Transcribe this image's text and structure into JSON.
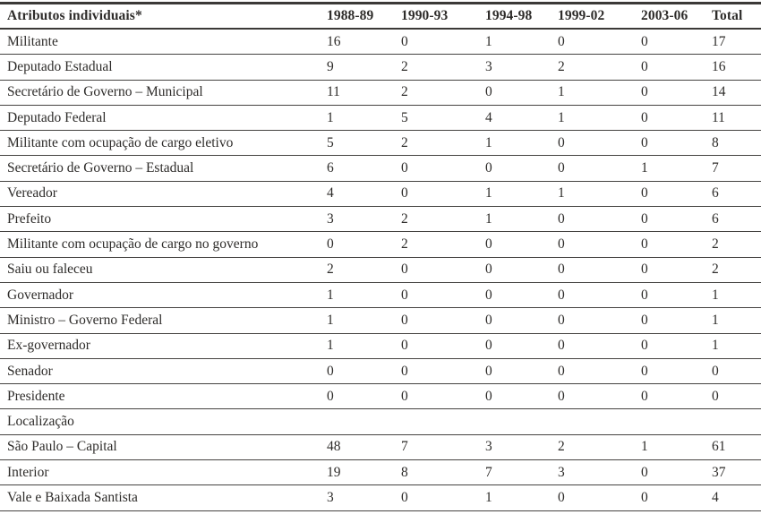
{
  "table": {
    "header_label": "Atributos individuais*",
    "columns": [
      "1988-89",
      "1990-93",
      "1994-98",
      "1999-02",
      "2003-06",
      "Total"
    ],
    "rows": [
      {
        "label": "Militante",
        "values": [
          "16",
          "0",
          "1",
          "0",
          "0",
          "17"
        ]
      },
      {
        "label": "Deputado Estadual",
        "values": [
          "9",
          "2",
          "3",
          "2",
          "0",
          "16"
        ]
      },
      {
        "label": "Secretário de Governo – Municipal",
        "values": [
          "11",
          "2",
          "0",
          "1",
          "0",
          "14"
        ]
      },
      {
        "label": "Deputado Federal",
        "values": [
          "1",
          "5",
          "4",
          "1",
          "0",
          "11"
        ]
      },
      {
        "label": "Militante com ocupação de cargo eletivo",
        "values": [
          "5",
          "2",
          "1",
          "0",
          "0",
          "8"
        ]
      },
      {
        "label": "Secretário de Governo – Estadual",
        "values": [
          "6",
          "0",
          "0",
          "0",
          "1",
          "7"
        ]
      },
      {
        "label": "Vereador",
        "values": [
          "4",
          "0",
          "1",
          "1",
          "0",
          "6"
        ]
      },
      {
        "label": "Prefeito",
        "values": [
          "3",
          "2",
          "1",
          "0",
          "0",
          "6"
        ]
      },
      {
        "label": "Militante com ocupação de cargo no governo",
        "values": [
          "0",
          "2",
          "0",
          "0",
          "0",
          "2"
        ]
      },
      {
        "label": "Saiu ou faleceu",
        "values": [
          "2",
          "0",
          "0",
          "0",
          "0",
          "2"
        ]
      },
      {
        "label": "Governador",
        "values": [
          "1",
          "0",
          "0",
          "0",
          "0",
          "1"
        ]
      },
      {
        "label": "Ministro – Governo Federal",
        "values": [
          "1",
          "0",
          "0",
          "0",
          "0",
          "1"
        ]
      },
      {
        "label": "Ex-governador",
        "values": [
          "1",
          "0",
          "0",
          "0",
          "0",
          "1"
        ]
      },
      {
        "label": "Senador",
        "values": [
          "0",
          "0",
          "0",
          "0",
          "0",
          "0"
        ]
      },
      {
        "label": "Presidente",
        "values": [
          "0",
          "0",
          "0",
          "0",
          "0",
          "0"
        ]
      },
      {
        "label": "Localização",
        "values": [
          "",
          "",
          "",
          "",
          "",
          ""
        ],
        "section": true
      },
      {
        "label": "São Paulo – Capital",
        "values": [
          "48",
          "7",
          "3",
          "2",
          "1",
          "61"
        ]
      },
      {
        "label": "Interior",
        "values": [
          "19",
          "8",
          "7",
          "3",
          "0",
          "37"
        ]
      },
      {
        "label": "Vale e Baixada Santista",
        "values": [
          "3",
          "0",
          "1",
          "0",
          "0",
          "4"
        ]
      }
    ]
  },
  "colors": {
    "text": "#2e2c2a",
    "rule_line": "#3b3937",
    "background": "#ffffff"
  }
}
